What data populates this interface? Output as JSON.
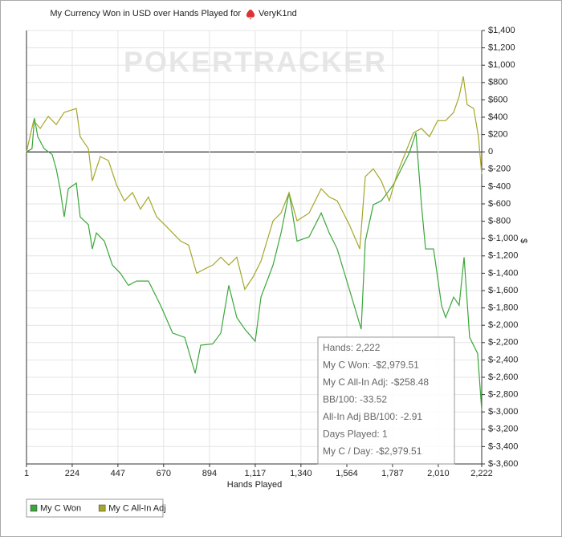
{
  "chart_data": {
    "type": "line",
    "title": "My Currency Won in USD over Hands Played for",
    "player": "VeryK1nd",
    "watermark": "POKERTRACKER",
    "x_label": "Hands Played",
    "y_label": "$",
    "xlim": [
      1,
      2222
    ],
    "ylim": [
      -3600,
      1400
    ],
    "grid": true,
    "xticks": [
      1,
      224,
      447,
      670,
      894,
      {
        "value": 1117,
        "label": "1,117"
      },
      {
        "value": 1340,
        "label": "1,340"
      },
      {
        "value": 1564,
        "label": "1,564"
      },
      {
        "value": 1787,
        "label": "1,787"
      },
      {
        "value": 2010,
        "label": "2,010"
      },
      {
        "value": 2222,
        "label": "2,222"
      }
    ],
    "yticks": [
      {
        "value": 1400,
        "label": "$1,400"
      },
      {
        "value": 1200,
        "label": "$1,200"
      },
      {
        "value": 1000,
        "label": "$1,000"
      },
      {
        "value": 800,
        "label": "$800"
      },
      {
        "value": 600,
        "label": "$600"
      },
      {
        "value": 400,
        "label": "$400"
      },
      {
        "value": 200,
        "label": "$200"
      },
      0,
      {
        "value": -200,
        "label": "$-200"
      },
      {
        "value": -400,
        "label": "$-400"
      },
      {
        "value": -600,
        "label": "$-600"
      },
      {
        "value": -800,
        "label": "$-800"
      },
      {
        "value": -1000,
        "label": "$-1,000"
      },
      {
        "value": -1200,
        "label": "$-1,200"
      },
      {
        "value": -1400,
        "label": "$-1,400"
      },
      {
        "value": -1600,
        "label": "$-1,600"
      },
      {
        "value": -1800,
        "label": "$-1,800"
      },
      {
        "value": -2000,
        "label": "$-2,000"
      },
      {
        "value": -2200,
        "label": "$-2,200"
      },
      {
        "value": -2400,
        "label": "$-2,400"
      },
      {
        "value": -2600,
        "label": "$-2,600"
      },
      {
        "value": -2800,
        "label": "$-2,800"
      },
      {
        "value": -3000,
        "label": "$-3,000"
      },
      {
        "value": -3200,
        "label": "$-3,200"
      },
      {
        "value": -3400,
        "label": "$-3,400"
      },
      {
        "value": -3600,
        "label": "$-3,600"
      }
    ],
    "series": [
      {
        "name": "My C Won",
        "color": "#3aa63a",
        "x": [
          1,
          28,
          40,
          56,
          87,
          126,
          146,
          165,
          185,
          205,
          244,
          263,
          303,
          322,
          342,
          381,
          420,
          459,
          498,
          538,
          596,
          655,
          714,
          773,
          824,
          851,
          910,
          949,
          988,
          1027,
          1066,
          1117,
          1145,
          1204,
          1243,
          1282,
          1321,
          1380,
          1439,
          1478,
          1517,
          1576,
          1634,
          1654,
          1693,
          1732,
          1791,
          1830,
          1869,
          1901,
          1928,
          1948,
          1987,
          2026,
          2046,
          2085,
          2112,
          2136,
          2163,
          2202,
          2222
        ],
        "values": [
          0,
          37,
          390,
          175,
          37,
          -30,
          -195,
          -425,
          -750,
          -425,
          -360,
          -750,
          -840,
          -1120,
          -935,
          -1030,
          -1305,
          -1400,
          -1540,
          -1490,
          -1490,
          -1770,
          -2090,
          -2140,
          -2555,
          -2230,
          -2215,
          -2090,
          -1540,
          -1910,
          -2045,
          -2185,
          -1675,
          -1305,
          -935,
          -470,
          -1030,
          -980,
          -705,
          -935,
          -1120,
          -1585,
          -2045,
          -1030,
          -610,
          -565,
          -380,
          -195,
          -10,
          220,
          -610,
          -1120,
          -1120,
          -1770,
          -1910,
          -1675,
          -1770,
          -1215,
          -2140,
          -2325,
          -2979.51
        ]
      },
      {
        "name": "My C All-In Adj",
        "color": "#a6a62a",
        "x": [
          1,
          36,
          68,
          107,
          146,
          185,
          244,
          263,
          303,
          322,
          361,
          401,
          440,
          479,
          518,
          557,
          596,
          636,
          675,
          714,
          753,
          792,
          831,
          871,
          910,
          949,
          988,
          1027,
          1066,
          1106,
          1145,
          1204,
          1243,
          1282,
          1321,
          1380,
          1439,
          1478,
          1517,
          1576,
          1627,
          1654,
          1693,
          1732,
          1771,
          1811,
          1850,
          1889,
          1928,
          1967,
          2007,
          2046,
          2085,
          2112,
          2132,
          2151,
          2183,
          2206,
          2222
        ],
        "values": [
          0,
          360,
          270,
          410,
          315,
          455,
          500,
          175,
          37,
          -335,
          -55,
          -100,
          -380,
          -565,
          -470,
          -660,
          -520,
          -750,
          -840,
          -935,
          -1030,
          -1075,
          -1400,
          -1350,
          -1305,
          -1215,
          -1305,
          -1215,
          -1585,
          -1445,
          -1260,
          -795,
          -705,
          -470,
          -795,
          -705,
          -425,
          -520,
          -565,
          -840,
          -1120,
          -285,
          -195,
          -335,
          -565,
          -240,
          -10,
          220,
          270,
          175,
          360,
          360,
          455,
          640,
          870,
          545,
          500,
          175,
          -258.48
        ]
      }
    ],
    "info_box": [
      "Hands: 2,222",
      "My C Won: -$2,979.51",
      "My C All-In Adj: -$258.48",
      "BB/100: -33.52",
      "All-In Adj BB/100: -2.91",
      "Days Played: 1",
      "My C / Day: -$2,979.51"
    ]
  }
}
